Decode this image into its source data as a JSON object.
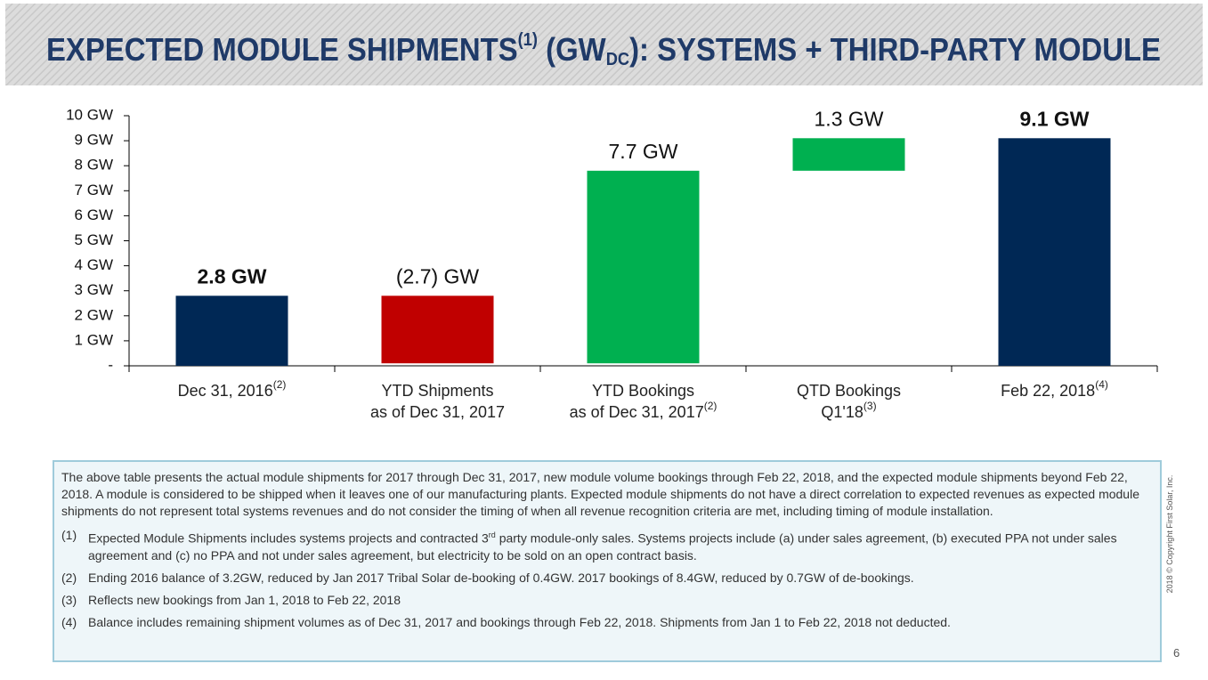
{
  "header": {
    "title": {
      "main": "EXPECTED MODULE SHIPMENTS",
      "note": "(1)",
      "unit": " (GW",
      "unit_sub": "DC",
      "rest": "): SYSTEMS + THIRD-PARTY MODULE"
    }
  },
  "chart_data": {
    "type": "waterfall",
    "categories": [
      [
        "Dec 31, 2016"
      ],
      [
        "YTD Shipments",
        "as of Dec 31, 2017"
      ],
      [
        "YTD Bookings",
        "as of Dec 31, 2017"
      ],
      [
        "QTD Bookings",
        "Q1'18"
      ],
      [
        "Feb 22, 2018"
      ]
    ],
    "category_notes": [
      "(2)",
      null,
      "(2)",
      "(3)",
      "(4)"
    ],
    "values": [
      2.8,
      -2.7,
      7.7,
      1.3,
      9.1
    ],
    "value_labels": [
      "2.8 GW",
      "(2.7) GW",
      "7.7 GW",
      "1.3 GW",
      "9.1 GW"
    ],
    "kinds": [
      "total",
      "decrease",
      "increase",
      "increase",
      "total"
    ],
    "colors": {
      "total": "#002855",
      "decrease": "#c00000",
      "increase": "#00b050"
    },
    "ylim": [
      0,
      10
    ],
    "yticks": [
      {
        "value": 0,
        "label": "-"
      },
      {
        "value": 1,
        "label": "1 GW"
      },
      {
        "value": 2,
        "label": "2 GW"
      },
      {
        "value": 3,
        "label": "3 GW"
      },
      {
        "value": 4,
        "label": "4 GW"
      },
      {
        "value": 5,
        "label": "5 GW"
      },
      {
        "value": 6,
        "label": "6 GW"
      },
      {
        "value": 7,
        "label": "7 GW"
      },
      {
        "value": 8,
        "label": "8 GW"
      },
      {
        "value": 9,
        "label": "9 GW"
      },
      {
        "value": 10,
        "label": "10 GW"
      }
    ],
    "grid": false
  },
  "notes": {
    "paragraph": "The above table presents the actual module shipments for 2017 through Dec 31, 2017, new module volume bookings through Feb 22, 2018, and the expected module shipments beyond Feb 22, 2018. A module is considered to be shipped when it leaves one of our manufacturing plants. Expected module shipments do not have a direct correlation to expected revenues as expected module shipments do not represent total systems revenues and do not consider the timing of when all revenue recognition criteria are met, including timing of module installation.",
    "footnotes": [
      {
        "number": "(1)",
        "text": "Expected Module Shipments includes systems projects and contracted 3",
        "sup": "rd",
        "text_after": " party module-only sales. Systems projects include (a) under sales agreement, (b) executed PPA not under sales agreement and (c) no PPA and not under sales agreement, but electricity to be sold on an open contract basis."
      },
      {
        "number": "(2)",
        "text": "Ending 2016 balance of 3.2GW, reduced by Jan 2017 Tribal Solar de-booking of 0.4GW.  2017 bookings of 8.4GW, reduced by 0.7GW of de-bookings."
      },
      {
        "number": "(3)",
        "text": "Reflects new bookings from Jan 1, 2018 to Feb 22, 2018"
      },
      {
        "number": "(4)",
        "text": "Balance includes remaining shipment volumes as of Dec 31, 2017 and bookings through Feb 22, 2018.  Shipments from Jan 1 to Feb 22, 2018 not deducted."
      }
    ]
  },
  "footer": {
    "copyright": "2018 © Copyright First Solar, Inc.",
    "page": "6"
  }
}
